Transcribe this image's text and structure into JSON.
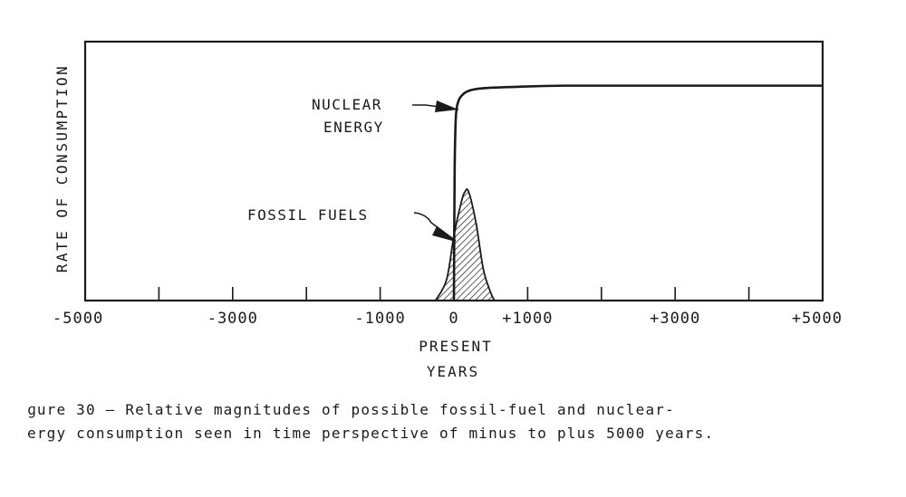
{
  "chart_data": {
    "type": "line",
    "xlabel": [
      "PRESENT",
      "YEARS"
    ],
    "ylabel": "RATE OF CONSUMPTION",
    "xlim": [
      -5000,
      5000
    ],
    "ylim": [
      0,
      1
    ],
    "x_ticks": [
      -5000,
      -4000,
      -3000,
      -2000,
      -1000,
      0,
      1000,
      2000,
      3000,
      4000,
      5000
    ],
    "x_tick_labels": [
      {
        "x": -5000,
        "label": "-5000"
      },
      {
        "x": -3000,
        "label": "-3000"
      },
      {
        "x": -1000,
        "label": "-1000"
      },
      {
        "x": 0,
        "label": "0"
      },
      {
        "x": 1000,
        "label": "+1000"
      },
      {
        "x": 3000,
        "label": "+3000"
      },
      {
        "x": 5000,
        "label": "+5000"
      }
    ],
    "grid": false,
    "series": [
      {
        "name": "NUCLEAR ENERGY",
        "x": [
          0,
          10,
          25,
          50,
          100,
          200,
          400,
          800,
          1500,
          3000,
          5000
        ],
        "y": [
          0,
          0.5,
          0.7,
          0.76,
          0.79,
          0.81,
          0.82,
          0.825,
          0.83,
          0.83,
          0.83
        ]
      },
      {
        "name": "FOSSIL FUELS",
        "x": [
          -250,
          -100,
          0,
          100,
          150,
          200,
          300,
          400,
          500,
          550
        ],
        "y": [
          0,
          0.08,
          0.25,
          0.38,
          0.42,
          0.42,
          0.3,
          0.12,
          0.03,
          0
        ]
      }
    ],
    "annotations": [
      {
        "text": [
          "NUCLEAR",
          "ENERGY"
        ],
        "target": "NUCLEAR ENERGY"
      },
      {
        "text": "FOSSIL  FUELS",
        "target": "FOSSIL FUELS"
      }
    ]
  },
  "caption": {
    "line1": "ɡure 30 – Relative magnitudes of possible fossil-fuel and nuclear-",
    "line2": "ergy consumption seen in time perspective of minus to plus 5000 years."
  }
}
